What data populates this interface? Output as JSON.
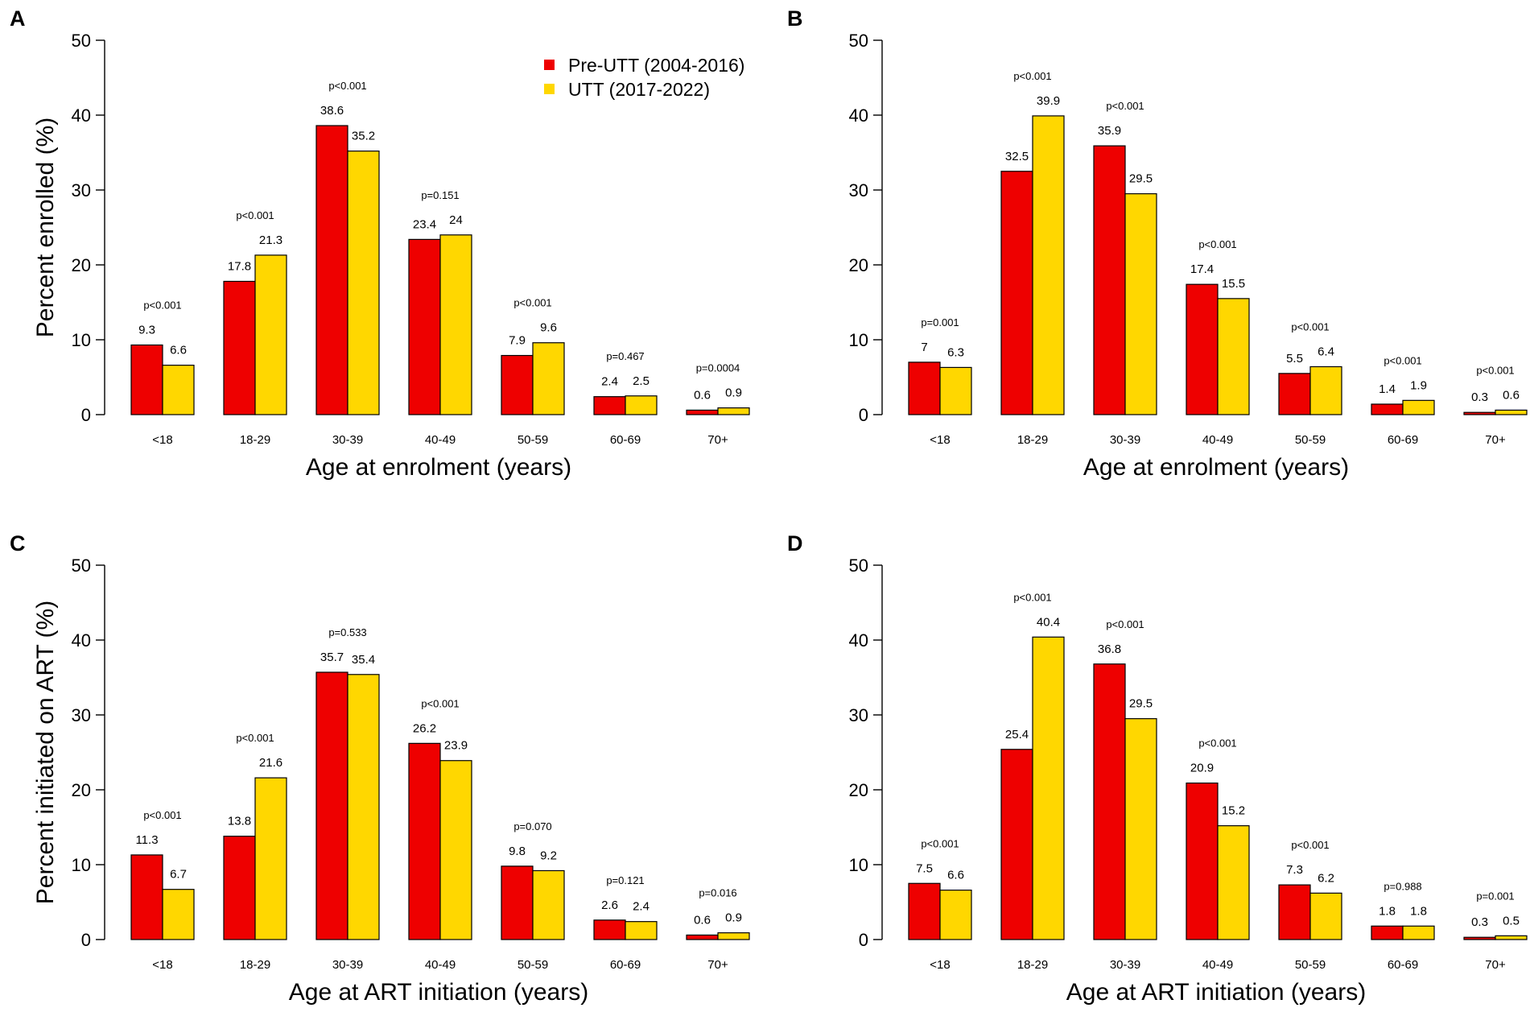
{
  "colors": {
    "pre_utt": "#ee0000",
    "utt": "#ffd700",
    "axis": "#000000"
  },
  "legend": [
    {
      "label": "Pre-UTT (2004-2016)",
      "color": "#ee0000"
    },
    {
      "label": "UTT (2017-2022)",
      "color": "#ffd700"
    }
  ],
  "chart_data": [
    {
      "panel": "A",
      "type": "bar",
      "title": "",
      "xlabel": "Age at enrolment (years)",
      "ylabel": "Percent enrolled (%)",
      "ylim": [
        0,
        50
      ],
      "yticks": [
        0,
        10,
        20,
        30,
        40,
        50
      ],
      "categories": [
        "<18",
        "18-29",
        "30-39",
        "40-49",
        "50-59",
        "60-69",
        "70+"
      ],
      "series": [
        {
          "name": "Pre-UTT (2004-2016)",
          "values": [
            9.3,
            17.8,
            38.6,
            23.4,
            7.9,
            2.4,
            0.6
          ]
        },
        {
          "name": "UTT (2017-2022)",
          "values": [
            6.6,
            21.3,
            35.2,
            24,
            9.6,
            2.5,
            0.9
          ]
        }
      ],
      "value_labels": [
        [
          "9.3",
          "17.8",
          "38.6",
          "23.4",
          "7.9",
          "2.4",
          "0.6"
        ],
        [
          "6.6",
          "21.3",
          "35.2",
          "24",
          "9.6",
          "2.5",
          "0.9"
        ]
      ],
      "p_values": [
        "p<0.001",
        "p<0.001",
        "p<0.001",
        "p=0.151",
        "p<0.001",
        "p=0.467",
        "p=0.0004"
      ],
      "legend": "top-right"
    },
    {
      "panel": "B",
      "type": "bar",
      "title": "",
      "xlabel": "Age at enrolment (years)",
      "ylabel": "",
      "ylim": [
        0,
        50
      ],
      "yticks": [
        0,
        10,
        20,
        30,
        40,
        50
      ],
      "categories": [
        "<18",
        "18-29",
        "30-39",
        "40-49",
        "50-59",
        "60-69",
        "70+"
      ],
      "series": [
        {
          "name": "Pre-UTT (2004-2016)",
          "values": [
            7,
            32.5,
            35.9,
            17.4,
            5.5,
            1.4,
            0.3
          ]
        },
        {
          "name": "UTT (2017-2022)",
          "values": [
            6.3,
            39.9,
            29.5,
            15.5,
            6.4,
            1.9,
            0.6
          ]
        }
      ],
      "value_labels": [
        [
          "7",
          "32.5",
          "35.9",
          "17.4",
          "5.5",
          "1.4",
          "0.3"
        ],
        [
          "6.3",
          "39.9",
          "29.5",
          "15.5",
          "6.4",
          "1.9",
          "0.6"
        ]
      ],
      "p_values": [
        "p=0.001",
        "p<0.001",
        "p<0.001",
        "p<0.001",
        "p<0.001",
        "p<0.001",
        "p<0.001"
      ]
    },
    {
      "panel": "C",
      "type": "bar",
      "title": "",
      "xlabel": "Age at ART initiation (years)",
      "ylabel": "Percent initiated on ART (%)",
      "ylim": [
        0,
        50
      ],
      "yticks": [
        0,
        10,
        20,
        30,
        40,
        50
      ],
      "categories": [
        "<18",
        "18-29",
        "30-39",
        "40-49",
        "50-59",
        "60-69",
        "70+"
      ],
      "series": [
        {
          "name": "Pre-UTT (2004-2016)",
          "values": [
            11.3,
            13.8,
            35.7,
            26.2,
            9.8,
            2.6,
            0.6
          ]
        },
        {
          "name": "UTT (2017-2022)",
          "values": [
            6.7,
            21.6,
            35.4,
            23.9,
            9.2,
            2.4,
            0.9
          ]
        }
      ],
      "value_labels": [
        [
          "11.3",
          "13.8",
          "35.7",
          "26.2",
          "9.8",
          "2.6",
          "0.6"
        ],
        [
          "6.7",
          "21.6",
          "35.4",
          "23.9",
          "9.2",
          "2.4",
          "0.9"
        ]
      ],
      "p_values": [
        "p<0.001",
        "p<0.001",
        "p=0.533",
        "p<0.001",
        "p=0.070",
        "p=0.121",
        "p=0.016"
      ]
    },
    {
      "panel": "D",
      "type": "bar",
      "title": "",
      "xlabel": "Age at ART initiation (years)",
      "ylabel": "",
      "ylim": [
        0,
        50
      ],
      "yticks": [
        0,
        10,
        20,
        30,
        40,
        50
      ],
      "categories": [
        "<18",
        "18-29",
        "30-39",
        "40-49",
        "50-59",
        "60-69",
        "70+"
      ],
      "series": [
        {
          "name": "Pre-UTT (2004-2016)",
          "values": [
            7.5,
            25.4,
            36.8,
            20.9,
            7.3,
            1.8,
            0.3
          ]
        },
        {
          "name": "UTT (2017-2022)",
          "values": [
            6.6,
            40.4,
            29.5,
            15.2,
            6.2,
            1.8,
            0.5
          ]
        }
      ],
      "value_labels": [
        [
          "7.5",
          "25.4",
          "36.8",
          "20.9",
          "7.3",
          "1.8",
          "0.3"
        ],
        [
          "6.6",
          "40.4",
          "29.5",
          "15.2",
          "6.2",
          "1.8",
          "0.5"
        ]
      ],
      "p_values": [
        "p<0.001",
        "p<0.001",
        "p<0.001",
        "p<0.001",
        "p<0.001",
        "p=0.988",
        "p=0.001"
      ]
    }
  ]
}
